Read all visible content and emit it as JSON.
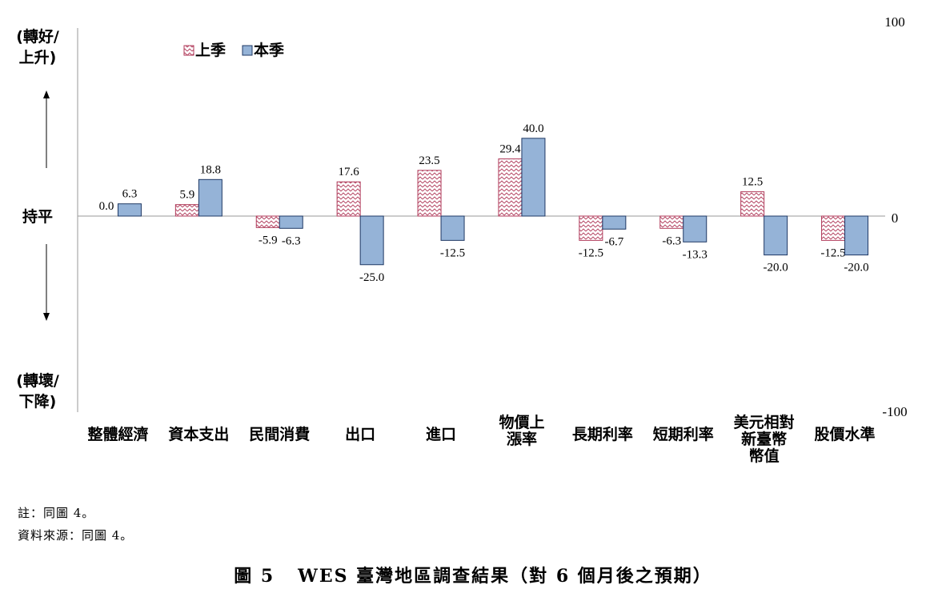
{
  "chart_data": {
    "type": "bar",
    "categories": [
      [
        "整體經濟"
      ],
      [
        "資本支出"
      ],
      [
        "民間消費"
      ],
      [
        "出口"
      ],
      [
        "進口"
      ],
      [
        "物價上",
        "漲率"
      ],
      [
        "長期利率"
      ],
      [
        "短期利率"
      ],
      [
        "美元相對",
        "新臺幣",
        "幣值"
      ],
      [
        "股價水準"
      ]
    ],
    "series": [
      {
        "name": "上季",
        "values": [
          0.0,
          5.9,
          -5.9,
          17.6,
          23.5,
          29.4,
          -12.5,
          -6.3,
          12.5,
          -12.5
        ],
        "labels": [
          "0.0",
          "5.9",
          "-5.9",
          "17.6",
          "23.5",
          "29.4",
          "-12.5",
          "-6.3",
          "12.5",
          "-12.5"
        ],
        "pattern": "zigzag",
        "color": "#b03a5a"
      },
      {
        "name": "本季",
        "values": [
          6.3,
          18.8,
          -6.3,
          -25.0,
          -12.5,
          40.0,
          -6.7,
          -13.3,
          -20.0,
          -20.0
        ],
        "labels": [
          "6.3",
          "18.8",
          "-6.3",
          "-25.0",
          "-12.5",
          "40.0",
          "-6.7",
          "-13.3",
          "-20.0",
          "-20.0"
        ],
        "fill": "#95b3d7",
        "stroke": "#1f3864"
      }
    ],
    "ylim": [
      -100,
      100
    ],
    "yticks": [
      "100",
      "0",
      "-100"
    ],
    "left_labels": {
      "top": [
        "(轉好/",
        "上升)"
      ],
      "middle": "持平",
      "bottom": [
        "(轉壞/",
        "下降)"
      ]
    },
    "legend": "top-left",
    "grid": false
  },
  "notes": {
    "note": "註：同圖 4。",
    "source": "資料來源：同圖 4。"
  },
  "caption": "圖 5   WES 臺灣地區調查結果（對 6 個月後之預期）"
}
